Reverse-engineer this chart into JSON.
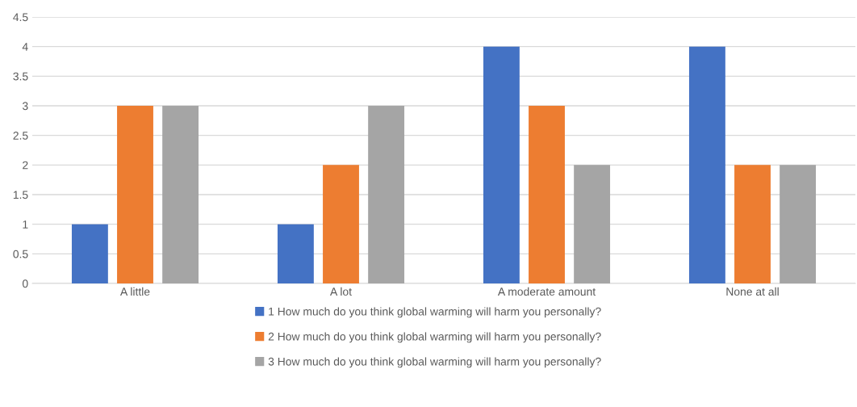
{
  "chart_data": {
    "type": "bar",
    "categories": [
      "A little",
      "A lot",
      "A moderate amount",
      "None at all"
    ],
    "series": [
      {
        "name": "1 How much do you think global warming will harm you personally?",
        "color": "#4472c4",
        "values": [
          1,
          1,
          4,
          4
        ]
      },
      {
        "name": "2 How much do you think global warming will harm you personally?",
        "color": "#ed7d31",
        "values": [
          3,
          2,
          3,
          2
        ]
      },
      {
        "name": "3 How much do you think global warming will harm you personally?",
        "color": "#a5a5a5",
        "values": [
          3,
          3,
          2,
          2
        ]
      }
    ],
    "ylim": [
      0,
      4.5
    ],
    "yticks": [
      0,
      0.5,
      1,
      1.5,
      2,
      2.5,
      3,
      3.5,
      4,
      4.5
    ],
    "grid": "y",
    "legend": "bottom"
  }
}
